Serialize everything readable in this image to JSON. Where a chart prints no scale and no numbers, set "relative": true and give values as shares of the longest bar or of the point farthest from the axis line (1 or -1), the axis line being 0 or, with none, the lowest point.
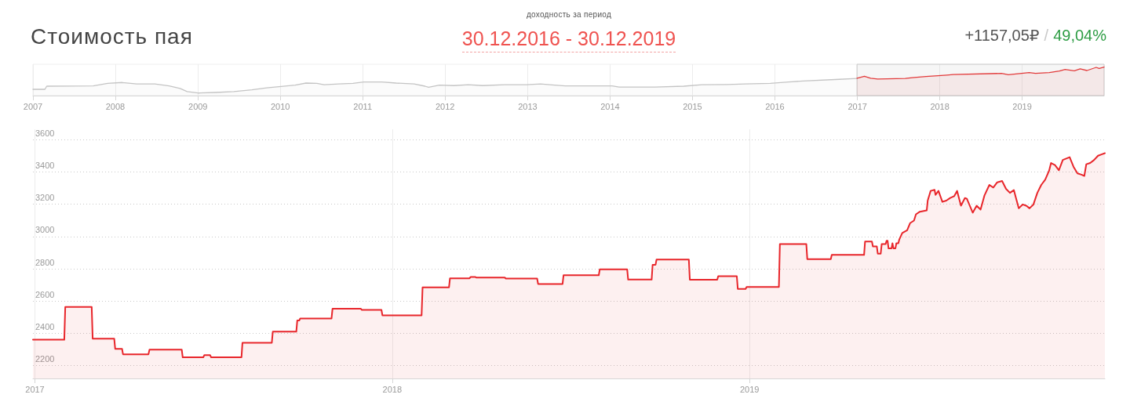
{
  "chart_data": [
    {
      "type": "area",
      "relative": true,
      "title": "Стоимость пая",
      "annotations": [
        "доходность за период",
        "30.12.2016 - 30.12.2019",
        "+1157,05₽",
        "/",
        "49,04%"
      ],
      "xlim": [
        "2007",
        "2019-12-30"
      ],
      "xticks": [
        "2007",
        "2008",
        "2009",
        "2010",
        "2011",
        "2012",
        "2013",
        "2014",
        "2015",
        "2016",
        "2017",
        "2018",
        "2019"
      ],
      "grid": "x",
      "bands": [
        {
          "axis": "x",
          "from": "2016-12-30",
          "to": "2019-12-30",
          "color": "#cccccc"
        }
      ],
      "series": [
        {
          "color": "#c4c4c4",
          "x": [
            "2007-01-01",
            "2007-02-23",
            "2007-03-03",
            "2007-09-25",
            "2007-11-28",
            "2008-02-01",
            "2008-04-05",
            "2008-06-24",
            "2008-08-26",
            "2008-10-14",
            "2008-11-14",
            "2009-01-01",
            "2009-03-21",
            "2009-06-09",
            "2009-08-28",
            "2009-11-01",
            "2010-01-04",
            "2010-03-08",
            "2010-04-25",
            "2010-06-12",
            "2010-07-14",
            "2010-09-16",
            "2010-11-19",
            "2011-01-06",
            "2011-03-26",
            "2011-05-29",
            "2011-08-17",
            "2011-10-04",
            "2011-10-20",
            "2011-12-07",
            "2012-02-09",
            "2012-04-13",
            "2012-06-16",
            "2012-09-20",
            "2012-12-25",
            "2013-02-27",
            "2013-05-01",
            "2013-06-16",
            "2014-01-10",
            "2014-02-10",
            "2014-07-19",
            "2014-11-24",
            "2015-02-12",
            "2015-06-04",
            "2015-08-22",
            "2015-12-12",
            "2016-03-02",
            "2016-05-05",
            "2016-10-12",
            "2016-12-30"
          ],
          "values": [
            0.22,
            0.22,
            0.33,
            0.34,
            0.43,
            0.46,
            0.41,
            0.41,
            0.34,
            0.25,
            0.14,
            0.09,
            0.11,
            0.14,
            0.2,
            0.27,
            0.32,
            0.37,
            0.44,
            0.43,
            0.38,
            0.41,
            0.43,
            0.48,
            0.48,
            0.44,
            0.41,
            0.33,
            0.29,
            0.37,
            0.35,
            0.38,
            0.35,
            0.38,
            0.38,
            0.41,
            0.37,
            0.34,
            0.34,
            0.3,
            0.3,
            0.33,
            0.38,
            0.39,
            0.41,
            0.43,
            0.48,
            0.51,
            0.57,
            0.6
          ]
        },
        {
          "color": "#e23b3b",
          "x": [
            "2016-12-30",
            "2017-02-01",
            "2017-03-01",
            "2017-04-01",
            "2017-08-01",
            "2017-09-01",
            "2017-10-01",
            "2017-11-01",
            "2018-02-01",
            "2018-03-01",
            "2018-10-01",
            "2018-11-01",
            "2019-02-01",
            "2019-03-01",
            "2019-05-01",
            "2019-06-15",
            "2019-07-10",
            "2019-08-20",
            "2019-09-15",
            "2019-10-15",
            "2019-11-25",
            "2019-12-08",
            "2019-12-30"
          ],
          "values": [
            0.61,
            0.68,
            0.61,
            0.58,
            0.6,
            0.63,
            0.65,
            0.67,
            0.72,
            0.74,
            0.78,
            0.73,
            0.81,
            0.78,
            0.81,
            0.86,
            0.92,
            0.87,
            0.94,
            0.88,
            0.99,
            0.95,
            1
          ]
        }
      ]
    },
    {
      "type": "area",
      "color": "#e8262b",
      "xlim": [
        "2016-12-30",
        "2019-12-30"
      ],
      "xticks": [
        "2017",
        "2018",
        "2019"
      ],
      "ylim": [
        2120,
        3665
      ],
      "yticks": [
        2200,
        2400,
        2600,
        2800,
        3000,
        3200,
        3400,
        3600
      ],
      "grid": true,
      "x": [
        "2016-12-30",
        "2017-01-31",
        "2017-02-01",
        "2017-02-28",
        "2017-03-01",
        "2017-03-23",
        "2017-03-24",
        "2017-03-31",
        "2017-04-01",
        "2017-04-27",
        "2017-04-28",
        "2017-05-31",
        "2017-06-01",
        "2017-06-22",
        "2017-06-23",
        "2017-06-29",
        "2017-06-30",
        "2017-07-31",
        "2017-08-01",
        "2017-08-31",
        "2017-09-01",
        "2017-09-25",
        "2017-09-26",
        "2017-09-28",
        "2017-09-29",
        "2017-10-31",
        "2017-11-01",
        "2017-11-30",
        "2017-12-01",
        "2017-12-21",
        "2017-12-22",
        "2018-01-31",
        "2018-02-01",
        "2018-02-28",
        "2018-03-01",
        "2018-03-21",
        "2018-03-22",
        "2018-03-27",
        "2018-03-28",
        "2018-04-26",
        "2018-04-27",
        "2018-05-29",
        "2018-05-30",
        "2018-06-24",
        "2018-06-25",
        "2018-07-31",
        "2018-08-01",
        "2018-08-29",
        "2018-08-30",
        "2018-09-23",
        "2018-09-24",
        "2018-09-27",
        "2018-09-28",
        "2018-10-31",
        "2018-11-01",
        "2018-11-29",
        "2018-11-30",
        "2018-12-19",
        "2018-12-20",
        "2018-12-28",
        "2018-12-29",
        "2019-01-31",
        "2019-02-01",
        "2019-02-28",
        "2019-03-01",
        "2019-03-25",
        "2019-03-26",
        "2019-04-28",
        "2019-04-29",
        "2019-05-06",
        "2019-05-07",
        "2019-05-11",
        "2019-05-12",
        "2019-05-15",
        "2019-05-16",
        "2019-05-20",
        "2019-05-21",
        "2019-05-22",
        "2019-05-23",
        "2019-05-26",
        "2019-05-27",
        "2019-05-28",
        "2019-05-30",
        "2019-05-31",
        "2019-06-02",
        "2019-06-03",
        "2019-06-06",
        "2019-06-11",
        "2019-06-14",
        "2019-06-18",
        "2019-06-20",
        "2019-06-24",
        "2019-07-01",
        "2019-07-02",
        "2019-07-05",
        "2019-07-09",
        "2019-07-10",
        "2019-07-13",
        "2019-07-17",
        "2019-07-21",
        "2019-07-25",
        "2019-07-29",
        "2019-08-01",
        "2019-08-05",
        "2019-08-09",
        "2019-08-11",
        "2019-08-17",
        "2019-08-21",
        "2019-08-25",
        "2019-08-29",
        "2019-09-03",
        "2019-09-07",
        "2019-09-11",
        "2019-09-16",
        "2019-09-20",
        "2019-09-24",
        "2019-09-28",
        "2019-10-03",
        "2019-10-07",
        "2019-10-11",
        "2019-10-14",
        "2019-10-18",
        "2019-10-22",
        "2019-10-26",
        "2019-10-30",
        "2019-11-03",
        "2019-11-05",
        "2019-11-09",
        "2019-11-13",
        "2019-11-17",
        "2019-11-24",
        "2019-11-28",
        "2019-12-02",
        "2019-12-06",
        "2019-12-09",
        "2019-12-11",
        "2019-12-15",
        "2019-12-19",
        "2019-12-23",
        "2019-12-27",
        "2019-12-30"
      ],
      "values": [
        2360,
        2360,
        2563,
        2563,
        2367,
        2367,
        2304,
        2304,
        2270,
        2270,
        2298,
        2298,
        2251,
        2251,
        2264,
        2264,
        2251,
        2251,
        2341,
        2341,
        2410,
        2410,
        2479,
        2479,
        2492,
        2492,
        2552,
        2552,
        2545,
        2545,
        2511,
        2511,
        2685,
        2685,
        2741,
        2741,
        2749,
        2749,
        2745,
        2745,
        2740,
        2740,
        2706,
        2706,
        2760,
        2760,
        2797,
        2797,
        2733,
        2733,
        2825,
        2825,
        2857,
        2857,
        2732,
        2732,
        2754,
        2754,
        2675,
        2675,
        2687,
        2687,
        2953,
        2953,
        2860,
        2860,
        2886,
        2886,
        2969,
        2969,
        2939,
        2939,
        2894,
        2894,
        2953,
        2953,
        2974,
        2974,
        2926,
        2926,
        2958,
        2926,
        2926,
        2958,
        2958,
        2982,
        3022,
        3039,
        3083,
        3099,
        3138,
        3154,
        3162,
        3223,
        3283,
        3290,
        3258,
        3283,
        3215,
        3223,
        3239,
        3250,
        3283,
        3191,
        3239,
        3234,
        3148,
        3191,
        3167,
        3255,
        3320,
        3304,
        3336,
        3344,
        3296,
        3271,
        3288,
        3175,
        3199,
        3190,
        3175,
        3199,
        3271,
        3320,
        3352,
        3408,
        3456,
        3443,
        3411,
        3475,
        3492,
        3432,
        3392,
        3384,
        3376,
        3448,
        3456,
        3475,
        3501,
        3510,
        3517
      ]
    }
  ]
}
